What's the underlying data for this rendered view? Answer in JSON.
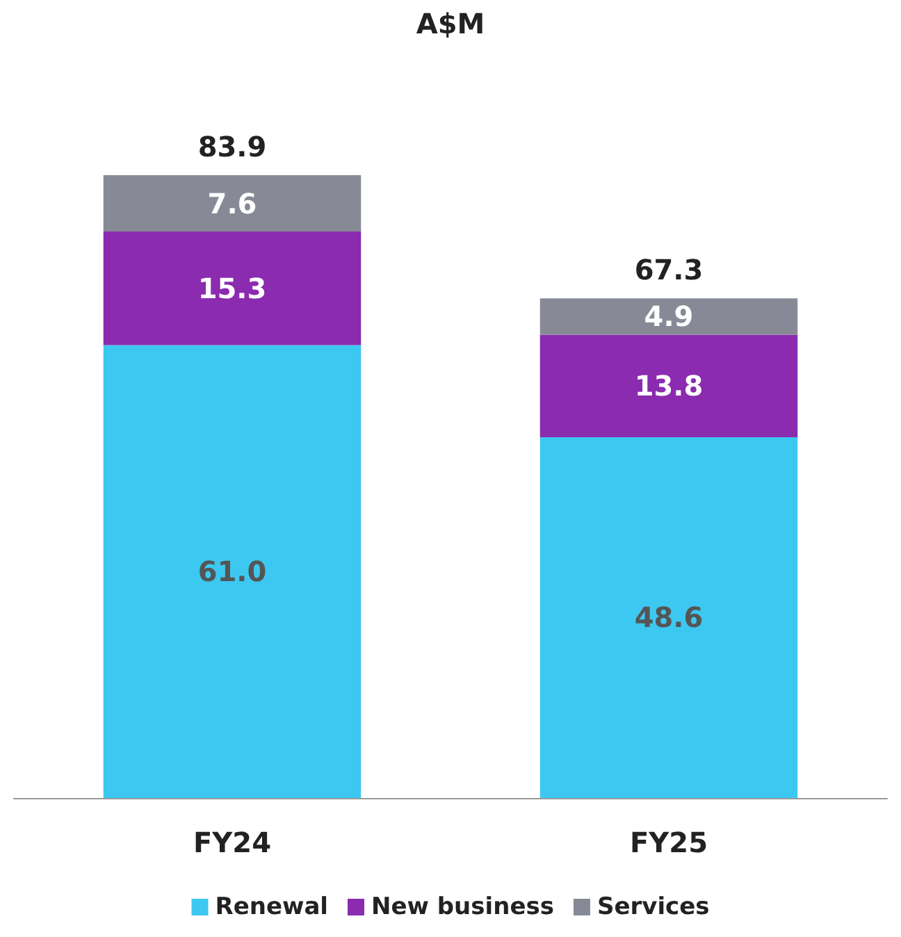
{
  "chart_data": {
    "type": "bar",
    "title": "A$M",
    "categories": [
      "FY24",
      "FY25"
    ],
    "series": [
      {
        "name": "Renewal",
        "color": "#3cc8f0",
        "values": [
          61.0,
          48.6
        ],
        "value_labels": [
          "61.0",
          "48.6"
        ]
      },
      {
        "name": "New business",
        "color": "#8a2bb0",
        "values": [
          15.3,
          13.8
        ],
        "value_labels": [
          "15.3",
          "13.8"
        ]
      },
      {
        "name": "Services",
        "color": "#878a96",
        "values": [
          7.6,
          4.9
        ],
        "value_labels": [
          "7.6",
          "4.9"
        ]
      }
    ],
    "stacked": true,
    "totals": [
      "83.9",
      "67.3"
    ],
    "legend": "bottom",
    "tick_labels": "x"
  }
}
